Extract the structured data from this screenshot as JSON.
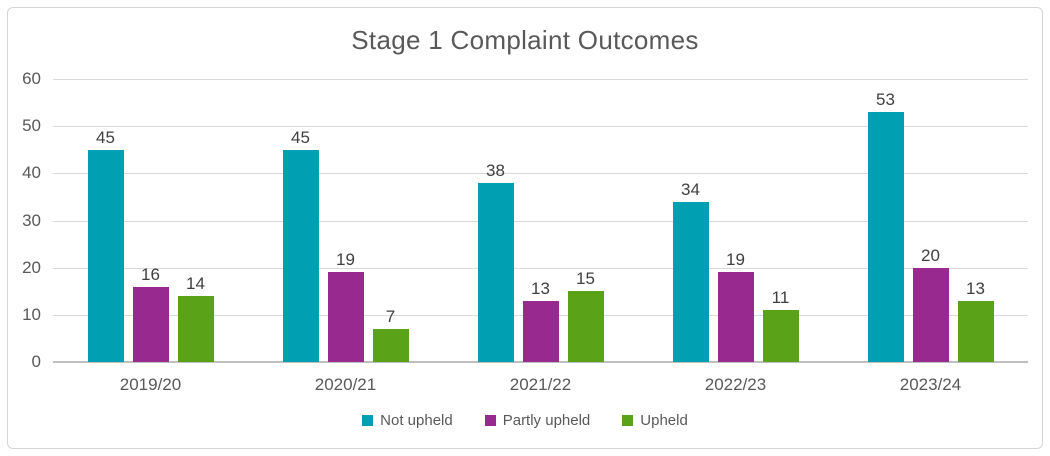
{
  "chart_data": {
    "type": "bar",
    "title": "Stage 1 Complaint Outcomes",
    "categories": [
      "2019/20",
      "2020/21",
      "2021/22",
      "2022/23",
      "2023/24"
    ],
    "series": [
      {
        "name": "Not upheld",
        "color": "#00A0B2",
        "values": [
          45,
          45,
          38,
          34,
          53
        ]
      },
      {
        "name": "Partly upheld",
        "color": "#97298F",
        "values": [
          16,
          19,
          13,
          19,
          20
        ]
      },
      {
        "name": "Upheld",
        "color": "#5AA318",
        "values": [
          14,
          7,
          15,
          11,
          13
        ]
      }
    ],
    "xlabel": "",
    "ylabel": "",
    "ylim": [
      0,
      60
    ],
    "yticks": [
      0,
      10,
      20,
      30,
      40,
      50,
      60
    ],
    "grid": "horizontal",
    "legend_position": "bottom",
    "value_labels": "above-bars"
  },
  "colors": {
    "title_text": "#595959",
    "axis_text": "#595959",
    "value_label_text": "#3f3f3f",
    "gridline": "#d9d9d9",
    "axis_line": "#bfbfbf",
    "frame_border": "#d6d6d6",
    "background": "#ffffff"
  }
}
